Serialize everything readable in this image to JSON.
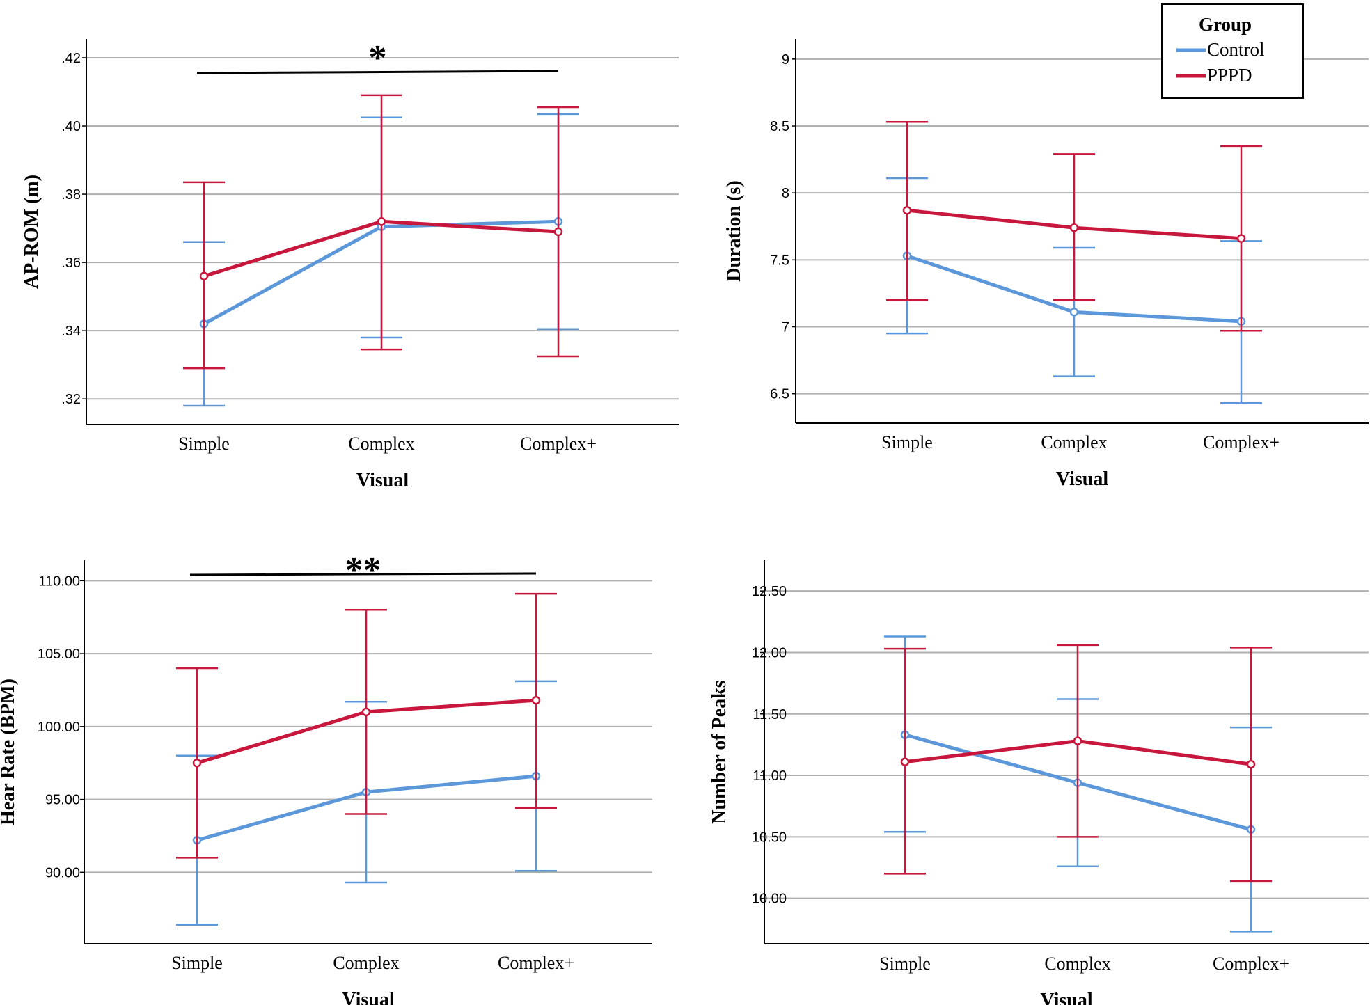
{
  "legend": {
    "title": "Group",
    "entries": [
      {
        "name": "Control",
        "color": "#5b97d9"
      },
      {
        "name": "PPPD",
        "color": "#c8173d"
      }
    ]
  },
  "colors": {
    "control": "#5b97d9",
    "pppd": "#c8173d",
    "grid": "#b0b0b0",
    "axis": "#000000"
  },
  "chart_data": [
    {
      "type": "line",
      "title": "",
      "xlabel": "Visual",
      "ylabel": "AP-ROM (m)",
      "categories": [
        "Simple",
        "Complex",
        "Complex+"
      ],
      "ylim": [
        0.3125,
        0.4255
      ],
      "yticks": [
        0.32,
        0.34,
        0.36,
        0.38,
        0.4,
        0.42
      ],
      "ytick_labels": [
        ".32",
        ".34",
        ".36",
        ".38",
        ".40",
        ".42"
      ],
      "grid": true,
      "series": [
        {
          "name": "Control",
          "values": [
            0.342,
            0.3705,
            0.372
          ],
          "err_low": [
            0.318,
            0.338,
            0.3405
          ],
          "err_high": [
            0.366,
            0.4025,
            0.4035
          ]
        },
        {
          "name": "PPPD",
          "values": [
            0.356,
            0.372,
            0.369
          ],
          "err_low": [
            0.329,
            0.3345,
            0.3325
          ],
          "err_high": [
            0.3835,
            0.409,
            0.4055
          ]
        }
      ],
      "significance": {
        "label": "*",
        "from": "Simple",
        "to": "Complex+"
      }
    },
    {
      "type": "line",
      "title": "",
      "xlabel": "Visual",
      "ylabel": "Duration (s)",
      "categories": [
        "Simple",
        "Complex",
        "Complex+"
      ],
      "ylim": [
        6.28,
        9.15
      ],
      "yticks": [
        6.5,
        7,
        7.5,
        8,
        8.5,
        9
      ],
      "ytick_labels": [
        "6.5",
        "7",
        "7.5",
        "8",
        "8.5",
        "9"
      ],
      "grid": true,
      "series": [
        {
          "name": "Control",
          "values": [
            7.53,
            7.11,
            7.04
          ],
          "err_low": [
            6.95,
            6.63,
            6.43
          ],
          "err_high": [
            8.11,
            7.59,
            7.64
          ]
        },
        {
          "name": "PPPD",
          "values": [
            7.87,
            7.74,
            7.66
          ],
          "err_low": [
            7.2,
            7.2,
            6.97
          ],
          "err_high": [
            8.53,
            8.29,
            8.35
          ]
        }
      ]
    },
    {
      "type": "line",
      "title": "",
      "xlabel": "Visual",
      "ylabel": "Hear Rate (BPM)",
      "categories": [
        "Simple",
        "Complex",
        "Complex+"
      ],
      "ylim": [
        85.1,
        111.4
      ],
      "yticks": [
        90,
        95,
        100,
        105,
        110
      ],
      "ytick_labels": [
        "90.00",
        "95.00",
        "100.00",
        "105.00",
        "110.00"
      ],
      "grid": true,
      "series": [
        {
          "name": "Control",
          "values": [
            92.2,
            95.5,
            96.6
          ],
          "err_low": [
            86.4,
            89.3,
            90.1
          ],
          "err_high": [
            98.0,
            101.7,
            103.1
          ]
        },
        {
          "name": "PPPD",
          "values": [
            97.5,
            101.0,
            101.8
          ],
          "err_low": [
            91.0,
            94.0,
            94.4
          ],
          "err_high": [
            104.0,
            108.0,
            109.1
          ]
        }
      ],
      "significance": {
        "label": "**",
        "from": "Simple",
        "to": "Complex+"
      }
    },
    {
      "type": "line",
      "title": "",
      "xlabel": "Visual",
      "ylabel": "Number of Peaks",
      "categories": [
        "Simple",
        "Complex",
        "Complex+"
      ],
      "ylim": [
        9.63,
        12.75
      ],
      "yticks": [
        10.0,
        10.5,
        11.0,
        11.5,
        12.0,
        12.5
      ],
      "ytick_labels": [
        "10.00",
        "10.50",
        "11.00",
        "11.50",
        "12.00",
        "12.50"
      ],
      "grid": true,
      "series": [
        {
          "name": "Control",
          "values": [
            11.33,
            10.94,
            10.56
          ],
          "err_low": [
            10.54,
            10.26,
            9.73
          ],
          "err_high": [
            12.13,
            11.62,
            11.39
          ]
        },
        {
          "name": "PPPD",
          "values": [
            11.11,
            11.28,
            11.09
          ],
          "err_low": [
            10.2,
            10.5,
            10.14
          ],
          "err_high": [
            12.03,
            12.06,
            12.04
          ]
        }
      ]
    }
  ]
}
